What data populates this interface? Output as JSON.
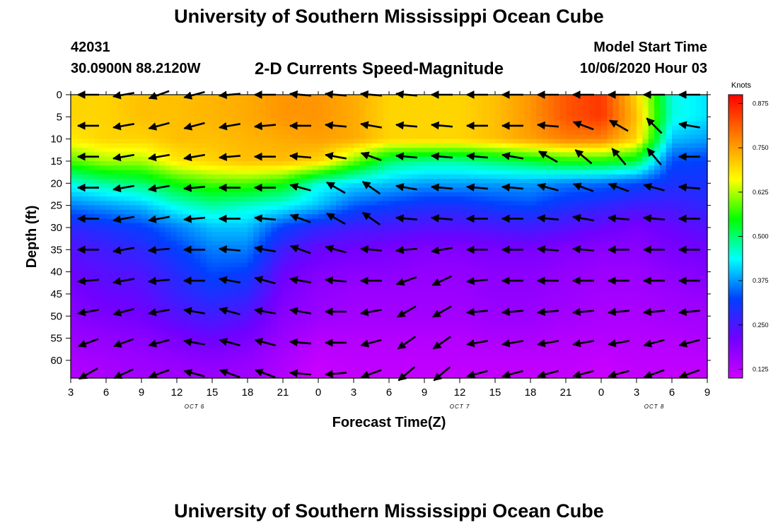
{
  "header": {
    "title": "University of Southern Mississippi Ocean Cube",
    "station_id": "42031",
    "station_location": "30.0900N 88.2120W",
    "subtitle": "2-D Currents Speed-Magnitude",
    "model_start_label": "Model Start Time",
    "model_start_value": "10/06/2020 Hour 03"
  },
  "footer": {
    "title": "University of Southern Mississippi Ocean Cube"
  },
  "chart_data": {
    "type": "heatmap",
    "xlabel": "Forecast Time(Z)",
    "ylabel": "Depth (ft)",
    "x_tick_labels": [
      "3",
      "6",
      "9",
      "12",
      "15",
      "18",
      "21",
      "0",
      "3",
      "6",
      "9",
      "12",
      "15",
      "18",
      "21",
      "0",
      "3",
      "6",
      "9"
    ],
    "x_hours": [
      3,
      6,
      9,
      12,
      15,
      18,
      21,
      24,
      27,
      30,
      33,
      36,
      39,
      42,
      45,
      48,
      51,
      54,
      57
    ],
    "date_labels": [
      {
        "label": "OCT 6",
        "hour": 13.5
      },
      {
        "label": "OCT 7",
        "hour": 36
      },
      {
        "label": "OCT 8",
        "hour": 52.5
      }
    ],
    "y_ticks": [
      0,
      5,
      10,
      15,
      20,
      25,
      30,
      35,
      40,
      45,
      50,
      55,
      60
    ],
    "xlim": [
      3,
      57
    ],
    "ylim": [
      0,
      64
    ],
    "colorbar": {
      "label": "Knots",
      "ticks": [
        "0.125",
        "0.250",
        "0.375",
        "0.500",
        "0.625",
        "0.750",
        "0.875"
      ],
      "range": [
        0.1,
        0.9
      ]
    },
    "time_hours": [
      3,
      6,
      9,
      12,
      15,
      18,
      21,
      24,
      27,
      30,
      33,
      36,
      39,
      42,
      45,
      48,
      51,
      54,
      57
    ],
    "depths": [
      0,
      5,
      10,
      15,
      20,
      25,
      30,
      35,
      40,
      45,
      50,
      55,
      60,
      64
    ],
    "speed": [
      [
        0.7,
        0.7,
        0.72,
        0.72,
        0.73,
        0.74,
        0.76,
        0.76,
        0.74,
        0.7,
        0.7,
        0.7,
        0.72,
        0.76,
        0.82,
        0.85,
        0.7,
        0.45,
        0.42
      ],
      [
        0.7,
        0.7,
        0.72,
        0.72,
        0.73,
        0.74,
        0.76,
        0.76,
        0.74,
        0.7,
        0.7,
        0.7,
        0.72,
        0.76,
        0.82,
        0.85,
        0.72,
        0.45,
        0.42
      ],
      [
        0.68,
        0.7,
        0.7,
        0.72,
        0.72,
        0.73,
        0.74,
        0.75,
        0.74,
        0.7,
        0.7,
        0.7,
        0.72,
        0.75,
        0.78,
        0.78,
        0.7,
        0.4,
        0.38
      ],
      [
        0.58,
        0.62,
        0.62,
        0.68,
        0.7,
        0.72,
        0.72,
        0.7,
        0.6,
        0.5,
        0.48,
        0.48,
        0.5,
        0.52,
        0.55,
        0.55,
        0.52,
        0.33,
        0.32
      ],
      [
        0.45,
        0.48,
        0.5,
        0.55,
        0.58,
        0.58,
        0.55,
        0.45,
        0.42,
        0.4,
        0.38,
        0.38,
        0.38,
        0.38,
        0.36,
        0.35,
        0.33,
        0.3,
        0.3
      ],
      [
        0.36,
        0.38,
        0.4,
        0.45,
        0.48,
        0.46,
        0.44,
        0.4,
        0.34,
        0.32,
        0.3,
        0.3,
        0.32,
        0.33,
        0.3,
        0.28,
        0.26,
        0.26,
        0.28
      ],
      [
        0.28,
        0.3,
        0.32,
        0.36,
        0.4,
        0.4,
        0.32,
        0.28,
        0.26,
        0.25,
        0.24,
        0.24,
        0.25,
        0.26,
        0.24,
        0.22,
        0.2,
        0.22,
        0.24
      ],
      [
        0.24,
        0.26,
        0.28,
        0.32,
        0.36,
        0.36,
        0.26,
        0.22,
        0.21,
        0.2,
        0.19,
        0.19,
        0.2,
        0.2,
        0.19,
        0.18,
        0.18,
        0.2,
        0.21
      ],
      [
        0.22,
        0.24,
        0.25,
        0.29,
        0.33,
        0.32,
        0.22,
        0.19,
        0.18,
        0.18,
        0.17,
        0.17,
        0.18,
        0.18,
        0.17,
        0.16,
        0.16,
        0.18,
        0.19
      ],
      [
        0.2,
        0.22,
        0.23,
        0.27,
        0.3,
        0.28,
        0.2,
        0.17,
        0.16,
        0.16,
        0.16,
        0.16,
        0.17,
        0.17,
        0.16,
        0.15,
        0.15,
        0.16,
        0.17
      ],
      [
        0.18,
        0.2,
        0.21,
        0.24,
        0.26,
        0.24,
        0.18,
        0.16,
        0.15,
        0.15,
        0.15,
        0.15,
        0.16,
        0.16,
        0.15,
        0.14,
        0.14,
        0.15,
        0.15
      ],
      [
        0.16,
        0.17,
        0.18,
        0.2,
        0.22,
        0.2,
        0.16,
        0.13,
        0.13,
        0.13,
        0.13,
        0.13,
        0.14,
        0.14,
        0.13,
        0.13,
        0.13,
        0.13,
        0.14
      ],
      [
        0.14,
        0.15,
        0.16,
        0.17,
        0.18,
        0.17,
        0.14,
        0.11,
        0.12,
        0.12,
        0.12,
        0.12,
        0.12,
        0.12,
        0.12,
        0.11,
        0.12,
        0.12,
        0.12
      ],
      [
        0.13,
        0.14,
        0.15,
        0.15,
        0.16,
        0.15,
        0.13,
        0.1,
        0.11,
        0.11,
        0.11,
        0.11,
        0.11,
        0.11,
        0.11,
        0.1,
        0.11,
        0.11,
        0.11
      ]
    ],
    "vector_times": [
      4.5,
      7.5,
      10.5,
      13.5,
      16.5,
      19.5,
      22.5,
      25.5,
      28.5,
      31.5,
      34.5,
      37.5,
      40.5,
      43.5,
      46.5,
      49.5,
      52.5,
      55.5
    ],
    "vector_depths": [
      0,
      7,
      14,
      21,
      28,
      35,
      42,
      49,
      56,
      63
    ],
    "vector_angles_deg": [
      [
        180,
        190,
        200,
        195,
        185,
        180,
        175,
        175,
        175,
        175,
        180,
        180,
        180,
        180,
        180,
        180,
        180,
        180
      ],
      [
        180,
        190,
        195,
        195,
        190,
        185,
        180,
        175,
        170,
        175,
        175,
        180,
        180,
        175,
        160,
        150,
        135,
        170
      ],
      [
        180,
        190,
        190,
        190,
        185,
        180,
        175,
        170,
        160,
        175,
        175,
        175,
        170,
        150,
        140,
        130,
        130,
        180
      ],
      [
        180,
        190,
        190,
        185,
        180,
        180,
        165,
        150,
        145,
        170,
        175,
        175,
        175,
        165,
        160,
        160,
        165,
        175
      ],
      [
        180,
        190,
        190,
        185,
        180,
        175,
        160,
        150,
        145,
        175,
        175,
        180,
        180,
        175,
        170,
        175,
        175,
        180
      ],
      [
        180,
        190,
        185,
        180,
        175,
        170,
        160,
        165,
        175,
        185,
        190,
        180,
        180,
        175,
        175,
        180,
        180,
        180
      ],
      [
        185,
        190,
        185,
        180,
        170,
        165,
        170,
        175,
        180,
        200,
        205,
        185,
        180,
        180,
        180,
        180,
        180,
        180
      ],
      [
        190,
        195,
        190,
        170,
        165,
        170,
        170,
        180,
        190,
        210,
        210,
        185,
        185,
        185,
        185,
        185,
        185,
        185
      ],
      [
        200,
        200,
        195,
        170,
        165,
        165,
        175,
        180,
        195,
        215,
        215,
        190,
        190,
        190,
        190,
        190,
        195,
        195
      ],
      [
        210,
        205,
        200,
        165,
        160,
        160,
        175,
        185,
        200,
        220,
        220,
        195,
        195,
        195,
        195,
        195,
        200,
        200
      ]
    ]
  }
}
